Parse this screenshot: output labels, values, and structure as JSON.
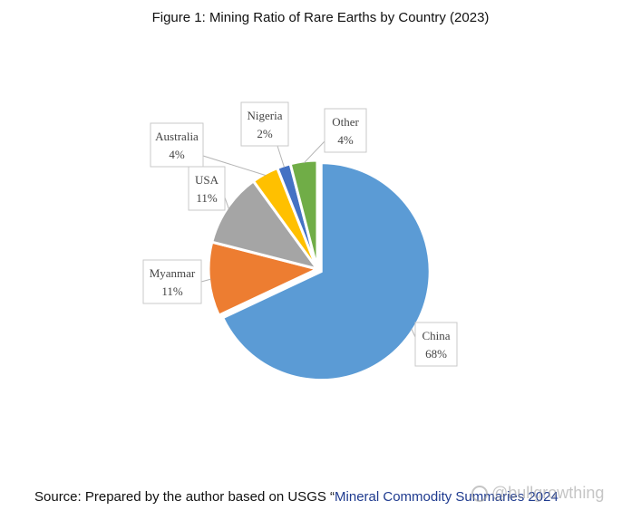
{
  "figure": {
    "title": "Figure 1:  Mining Ratio of Rare Earths by Country (2023)"
  },
  "chart_data": {
    "type": "pie",
    "title": "Figure 1:  Mining Ratio of Rare Earths by Country (2023)",
    "slices": [
      {
        "label": "China",
        "value": 68,
        "value_label": "68%",
        "color": "#5b9bd5"
      },
      {
        "label": "Myanmar",
        "value": 11,
        "value_label": "11%",
        "color": "#ed7d31"
      },
      {
        "label": "USA",
        "value": 11,
        "value_label": "11%",
        "color": "#a5a5a5"
      },
      {
        "label": "Australia",
        "value": 4,
        "value_label": "4%",
        "color": "#ffc000"
      },
      {
        "label": "Nigeria",
        "value": 2,
        "value_label": "2%",
        "color": "#4472c4"
      },
      {
        "label": "Other",
        "value": 4,
        "value_label": "4%",
        "color": "#70ad47"
      }
    ],
    "exploded_slice": "China",
    "start": "12 o'clock",
    "direction": "clockwise"
  },
  "source": {
    "prefix": "Source: Prepared by the author based on USGS “",
    "link": "Mineral Commodity Summaries 2024"
  },
  "watermark": {
    "text": "@bullgrowthing"
  }
}
